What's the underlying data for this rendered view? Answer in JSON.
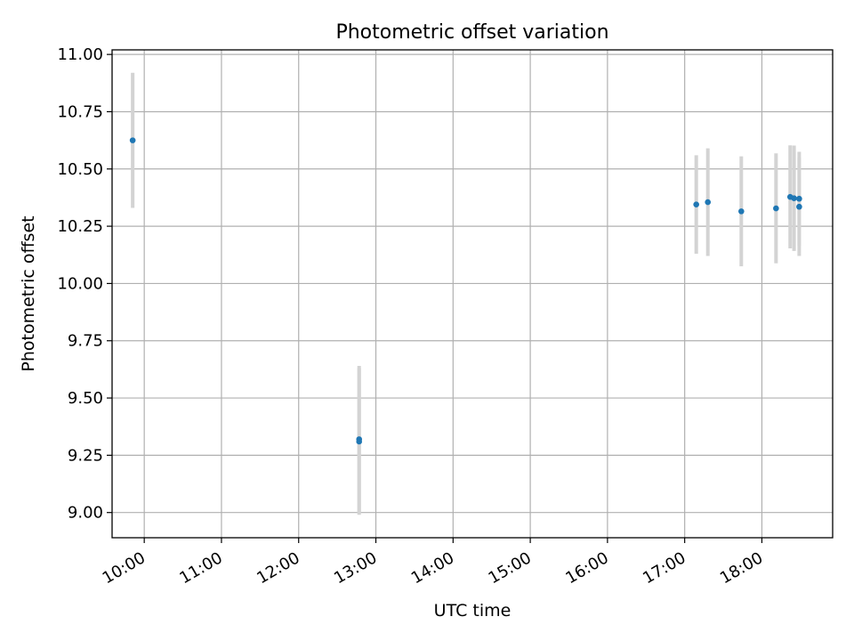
{
  "chart_data": {
    "type": "scatter",
    "title": "Photometric offset variation",
    "xlabel": "UTC time",
    "ylabel": "Photometric offset",
    "x_axis": "time",
    "xlim": [
      "09:35",
      "18:55"
    ],
    "ylim": [
      8.89,
      11.02
    ],
    "xticks": [
      "10:00",
      "11:00",
      "12:00",
      "13:00",
      "14:00",
      "15:00",
      "16:00",
      "17:00",
      "18:00"
    ],
    "yticks": [
      "9.00",
      "9.25",
      "9.50",
      "9.75",
      "10.00",
      "10.25",
      "10.50",
      "10.75",
      "11.00"
    ],
    "grid": true,
    "colors": {
      "marker": "#1f77b4",
      "errorbar": "#d3d3d3",
      "grid": "#b0b0b0"
    },
    "points": [
      {
        "x": "09:51",
        "y": 10.625,
        "yerr": 0.295
      },
      {
        "x": "12:47",
        "y": 9.32,
        "yerr": 0.32
      },
      {
        "x": "12:47",
        "y": 9.31,
        "yerr": 0.32
      },
      {
        "x": "17:09",
        "y": 10.345,
        "yerr": 0.215
      },
      {
        "x": "17:18",
        "y": 10.355,
        "yerr": 0.235
      },
      {
        "x": "17:44",
        "y": 10.315,
        "yerr": 0.24
      },
      {
        "x": "18:11",
        "y": 10.328,
        "yerr": 0.24
      },
      {
        "x": "18:22",
        "y": 10.378,
        "yerr": 0.225
      },
      {
        "x": "18:25",
        "y": 10.372,
        "yerr": 0.23
      },
      {
        "x": "18:29",
        "y": 10.335,
        "yerr": 0.215
      },
      {
        "x": "18:29",
        "y": 10.37,
        "yerr": 0.205
      }
    ]
  }
}
